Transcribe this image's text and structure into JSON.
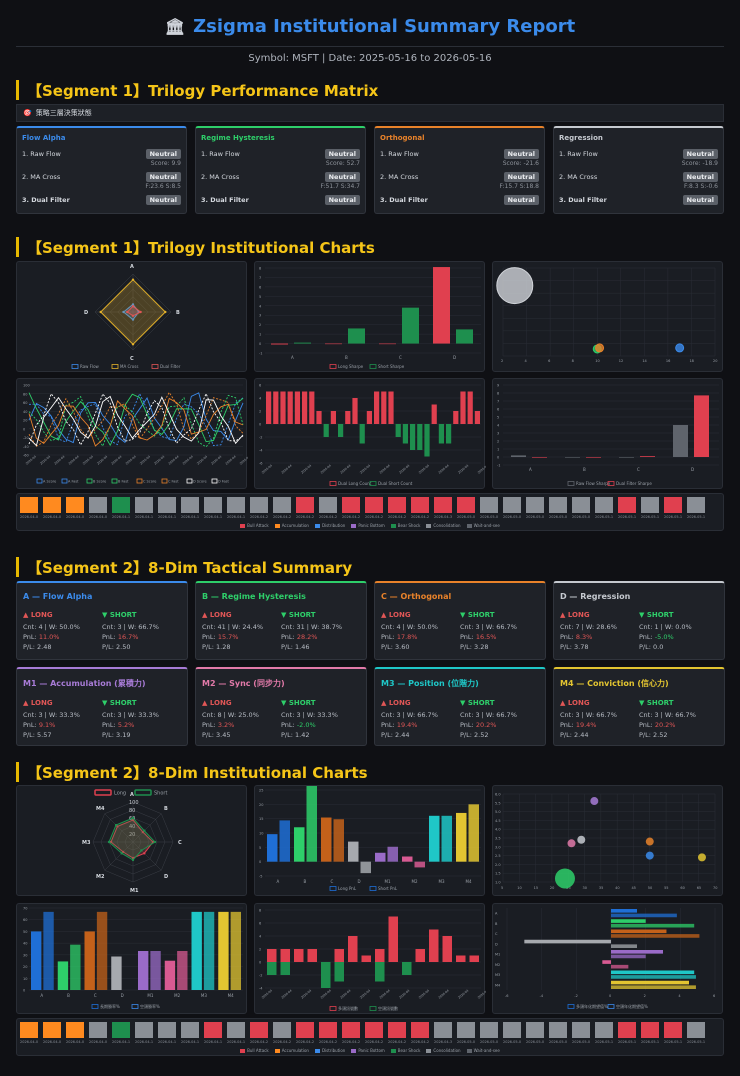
{
  "header": {
    "title": "Zsigma Institutional Summary Report",
    "bank_icon": "bank-icon",
    "subtitle": "Symbol: MSFT | Date: 2025-05-16 to 2026-05-16"
  },
  "sections": {
    "s1": "【Segment 1】Trilogy Performance Matrix",
    "s2": "【Segment 1】Trilogy Institutional Charts",
    "s3": "【Segment 2】8-Dim Tactical Summary",
    "s4": "【Segment 2】8-Dim Institutional Charts"
  },
  "matrix_strip": "策略三層決策狀態",
  "matrix": [
    {
      "name": "Flow Alpha",
      "color": "#3b8beb",
      "l1": "1. Raw Flow",
      "b1": "Neutral",
      "s1": "Score: 9.9",
      "l2": "2. MA Cross",
      "b2": "Neutral",
      "s2": "F:23.6 S:8.5",
      "l3": "3. Dual Filter",
      "b3": "Neutral"
    },
    {
      "name": "Regime Hysteresis",
      "color": "#2ecf6a",
      "l1": "1. Raw Flow",
      "b1": "Neutral",
      "s1": "Score: 52.7",
      "l2": "2. MA Cross",
      "b2": "Neutral",
      "s2": "F:51.7 S:34.7",
      "l3": "3. Dual Filter",
      "b3": "Neutral"
    },
    {
      "name": "Orthogonal",
      "color": "#e8822a",
      "l1": "1. Raw Flow",
      "b1": "Neutral",
      "s1": "Score: -21.6",
      "l2": "2. MA Cross",
      "b2": "Neutral",
      "s2": "F:15.7 S:18.8",
      "l3": "3. Dual Filter",
      "b3": "Neutral"
    },
    {
      "name": "Regression",
      "color": "#c5c9cf",
      "l1": "1. Raw Flow",
      "b1": "Neutral",
      "s1": "Score: -18.9",
      "l2": "2. MA Cross",
      "b2": "Neutral",
      "s2": "F:8.3 S:-0.6",
      "l3": "3. Dual Filter",
      "b3": "Neutral"
    }
  ],
  "dims": [
    {
      "title": "A — Flow Alpha",
      "color": "#3b8beb",
      "long": "▲ LONG",
      "short": "▼ SHORT",
      "lc": "Cnt: 4 | W: 50.0%",
      "lp": "11.0%",
      "lf": "P/L: 2.48",
      "sc": "Cnt: 3 | W: 66.7%",
      "sp": "16.7%",
      "sf": "P/L: 2.50"
    },
    {
      "title": "B — Regime Hysteresis",
      "color": "#2ecf6a",
      "long": "▲ LONG",
      "short": "▼ SHORT",
      "lc": "Cnt: 41 | W: 24.4%",
      "lp": "15.7%",
      "lf": "P/L: 1.28",
      "sc": "Cnt: 31 | W: 38.7%",
      "sp": "28.2%",
      "sf": "P/L: 1.46"
    },
    {
      "title": "C — Orthogonal",
      "color": "#e8822a",
      "long": "▲ LONG",
      "short": "▼ SHORT",
      "lc": "Cnt: 4 | W: 50.0%",
      "lp": "17.8%",
      "lf": "P/L: 3.60",
      "sc": "Cnt: 3 | W: 66.7%",
      "sp": "16.5%",
      "sf": "P/L: 3.28"
    },
    {
      "title": "D — Regression",
      "color": "#c5c9cf",
      "long": "▲ LONG",
      "short": "▼ SHORT",
      "lc": "Cnt: 7 | W: 28.6%",
      "lp": "8.3%",
      "lf": "P/L: 3.78",
      "sc": "Cnt: 1 | W: 0.0%",
      "sp": "-5.0%",
      "sf": "P/L: 0.0"
    },
    {
      "title": "M1 — Accumulation (累積力)",
      "color": "#a77bd6",
      "long": "▲ LONG",
      "short": "▼ SHORT",
      "lc": "Cnt: 3 | W: 33.3%",
      "lp": "9.1%",
      "lf": "P/L: 5.57",
      "sc": "Cnt: 3 | W: 33.3%",
      "sp": "5.2%",
      "sf": "P/L: 3.19"
    },
    {
      "title": "M2 — Sync (同步力)",
      "color": "#e27aa9",
      "long": "▲ LONG",
      "short": "▼ SHORT",
      "lc": "Cnt: 8 | W: 25.0%",
      "lp": "3.2%",
      "lf": "P/L: 3.45",
      "sc": "Cnt: 3 | W: 33.3%",
      "sp": "-2.0%",
      "sf": "P/L: 1.42"
    },
    {
      "title": "M3 — Position (位階力)",
      "color": "#1fc7c7",
      "long": "▲ LONG",
      "short": "▼ SHORT",
      "lc": "Cnt: 3 | W: 66.7%",
      "lp": "19.4%",
      "lf": "P/L: 2.44",
      "sc": "Cnt: 3 | W: 66.7%",
      "sp": "20.2%",
      "sf": "P/L: 2.52"
    },
    {
      "title": "M4 — Conviction (信心力)",
      "color": "#e3c531",
      "long": "▲ LONG",
      "short": "▼ SHORT",
      "lc": "Cnt: 3 | W: 66.7%",
      "lp": "19.4%",
      "lf": "P/L: 2.44",
      "sc": "Cnt: 3 | W: 66.7%",
      "sp": "20.2%",
      "sf": "P/L: 2.52"
    }
  ],
  "chart_data": [
    {
      "id": "radar1",
      "type": "radar",
      "axes": [
        "A",
        "B",
        "C",
        "D"
      ],
      "r_ticks": [
        "",
        "",
        "",
        ""
      ],
      "series": [
        {
          "name": "Raw Flow",
          "color": "#3b8beb",
          "values": [
            0.2,
            0.15,
            0.2,
            0.25
          ]
        },
        {
          "name": "MA Cross",
          "color": "#e3b12a",
          "values": [
            0.85,
            0.85,
            0.85,
            0.85
          ]
        },
        {
          "name": "Dual Filter",
          "color": "#e05656",
          "values": [
            0.15,
            0.2,
            0.1,
            0.15
          ]
        }
      ]
    },
    {
      "id": "sharpe1",
      "type": "bar",
      "categories": [
        "A",
        "B",
        "C",
        "D"
      ],
      "ylim": [
        -1,
        8
      ],
      "yticks": [
        "8",
        "7",
        "6",
        "5",
        "4",
        "3",
        "2",
        "1",
        "0",
        "-1"
      ],
      "series": [
        {
          "name": "Long Sharpe",
          "color": "#e0404f",
          "values": [
            -0.1,
            0,
            0,
            8.1
          ]
        },
        {
          "name": "Short Sharpe",
          "color": "#1e8f4e",
          "values": [
            0.1,
            1.6,
            3.8,
            1.5
          ]
        }
      ]
    },
    {
      "id": "scatter1",
      "type": "scatter",
      "xticks": [
        "2",
        "4",
        "6",
        "8",
        "10",
        "12",
        "14",
        "16",
        "18",
        "20"
      ],
      "points": [
        {
          "x": 3,
          "y": 20,
          "r": 18,
          "color": "#d0d3d8"
        },
        {
          "x": 10,
          "y": 2,
          "r": 4,
          "color": "#2ecf6a"
        },
        {
          "x": 10.2,
          "y": 2.3,
          "r": 4,
          "color": "#e8822a"
        },
        {
          "x": 17,
          "y": 2.3,
          "r": 4,
          "color": "#3b8beb"
        }
      ]
    },
    {
      "id": "lines1",
      "type": "line",
      "ylim": [
        -60,
        100
      ],
      "yticks": [
        "100",
        "80",
        "60",
        "40",
        "20",
        "0",
        "-20",
        "-40",
        "-60"
      ],
      "series": [
        {
          "name": "A Score",
          "color": "#3b8beb"
        },
        {
          "name": "A Fast",
          "color": "#3b8beb"
        },
        {
          "name": "B Score",
          "color": "#2ecf6a"
        },
        {
          "name": "B Fast",
          "color": "#2ecf6a"
        },
        {
          "name": "C Score",
          "color": "#e8822a"
        },
        {
          "name": "C Fast",
          "color": "#e8822a"
        },
        {
          "name": "D Score",
          "color": "#ffffff"
        },
        {
          "name": "D Fast",
          "color": "#ffffff"
        }
      ]
    },
    {
      "id": "dualcount1",
      "type": "bar",
      "ylim": [
        -6,
        6
      ],
      "yticks": [
        "6",
        "4",
        "2",
        "0",
        "-2",
        "-4",
        "-6"
      ],
      "values": [
        5,
        5,
        5,
        5,
        5,
        5,
        5,
        2,
        -2,
        2,
        -2,
        2,
        4,
        -3,
        2,
        5,
        5,
        5,
        -2,
        -3,
        -4,
        -4,
        -5,
        3,
        -3,
        -3,
        2,
        5,
        5,
        2
      ],
      "series": [
        {
          "name": "Dual Long Count",
          "color": "#e0404f"
        },
        {
          "name": "Dual Short Count",
          "color": "#1e8f4e"
        }
      ]
    },
    {
      "id": "dualsharpe1",
      "type": "bar",
      "categories": [
        "A",
        "B",
        "C",
        "D"
      ],
      "yticks": [
        "9",
        "8",
        "7",
        "6",
        "5",
        "4",
        "3",
        "2",
        "1",
        "0",
        "-1"
      ],
      "series": [
        {
          "name": "Raw Flow Sharpe",
          "color": "#5f646c",
          "values": [
            0.2,
            0,
            0,
            4
          ]
        },
        {
          "name": "Dual Filter Sharpe",
          "color": "#e0404f",
          "values": [
            0,
            0,
            0.1,
            7.7
          ]
        }
      ]
    },
    {
      "id": "radar2",
      "type": "radar",
      "axes": [
        "A",
        "B",
        "C",
        "D",
        "M1",
        "M2",
        "M3",
        "M4"
      ],
      "r_ticks": [
        "100",
        "80",
        "60",
        "40",
        "20"
      ],
      "series": [
        {
          "name": "Long",
          "color": "#e0404f",
          "values": [
            0.55,
            0.35,
            0.5,
            0.4,
            0.4,
            0.35,
            0.55,
            0.55
          ]
        },
        {
          "name": "Short",
          "color": "#1e8f4e",
          "values": [
            0.6,
            0.4,
            0.55,
            0.3,
            0.45,
            0.4,
            0.6,
            0.6
          ]
        }
      ]
    },
    {
      "id": "pnl2",
      "type": "bar",
      "categories": [
        "A",
        "B",
        "C",
        "D",
        "M1",
        "M2",
        "M3",
        "M4"
      ],
      "yticks": [
        "25",
        "20",
        "15",
        "10",
        "5",
        "0",
        "-5"
      ],
      "series": [
        {
          "name": "Long PnL",
          "color": "#1f6fd6"
        },
        {
          "name": "Short PnL",
          "color": "#1f6fd6"
        }
      ],
      "values": [
        [
          9.6,
          14.4
        ],
        [
          12,
          27
        ],
        [
          15.4,
          14.8
        ],
        [
          7,
          -4
        ],
        [
          3.1,
          5.2
        ],
        [
          1.8,
          -2
        ],
        [
          16,
          16
        ],
        [
          17,
          20
        ]
      ],
      "colors": [
        "#1f6fd6",
        "#2ecf6a",
        "#c4611a",
        "#a6a9ae",
        "#9a6bc8",
        "#d85a92",
        "#1fc7c7",
        "#e3c531"
      ]
    },
    {
      "id": "scatter2",
      "type": "scatter",
      "yticks": [
        "6.0",
        "5.5",
        "5.0",
        "4.5",
        "4.0",
        "3.5",
        "3.0",
        "2.5",
        "2.0",
        "1.5",
        "1.0"
      ],
      "xticks": [
        "5",
        "10",
        "15",
        "20",
        "25",
        "30",
        "35",
        "40",
        "45",
        "50",
        "55",
        "60",
        "65",
        "70"
      ],
      "points": [
        {
          "x": 24,
          "y": 1.2,
          "r": 10,
          "color": "#2ecf6a"
        },
        {
          "x": 26,
          "y": 3.2,
          "r": 4,
          "color": "#e27aa9"
        },
        {
          "x": 29,
          "y": 3.4,
          "r": 4,
          "color": "#c5c9cf"
        },
        {
          "x": 33,
          "y": 5.6,
          "r": 4,
          "color": "#a77bd6"
        },
        {
          "x": 50,
          "y": 3.3,
          "r": 4,
          "color": "#e8822a"
        },
        {
          "x": 50,
          "y": 2.5,
          "r": 4,
          "color": "#3b8beb"
        },
        {
          "x": 66,
          "y": 2.4,
          "r": 4,
          "color": "#e3c531"
        }
      ]
    },
    {
      "id": "winrate2",
      "type": "bar",
      "categories": [
        "A",
        "B",
        "C",
        "D",
        "M1",
        "M2",
        "M3",
        "M4"
      ],
      "yticks": [
        "70",
        "60",
        "50",
        "40",
        "30",
        "20",
        "10",
        "0"
      ],
      "values": [
        [
          50,
          66.7
        ],
        [
          24.4,
          38.7
        ],
        [
          50,
          66.7
        ],
        [
          28.6,
          0
        ],
        [
          33.3,
          33.3
        ],
        [
          25,
          33.3
        ],
        [
          66.7,
          66.7
        ],
        [
          66.7,
          66.7
        ]
      ],
      "colors": [
        "#1f6fd6",
        "#2ecf6a",
        "#c4611a",
        "#a6a9ae",
        "#9a6bc8",
        "#d85a92",
        "#1fc7c7",
        "#e3c531"
      ],
      "series": [
        {
          "name": "長期勝率%",
          "color": "#1f6fd6"
        },
        {
          "name": "空頭勝率%",
          "color": "#3b8beb"
        }
      ]
    },
    {
      "id": "daily2",
      "type": "bar",
      "yticks": [
        "8",
        "6",
        "4",
        "2",
        "0",
        "-2",
        "-4"
      ],
      "values": [
        [
          2,
          -2
        ],
        [
          2,
          -2
        ],
        [
          2,
          0
        ],
        [
          2,
          0
        ],
        [
          -4,
          0
        ],
        [
          2,
          -3
        ],
        [
          4,
          0
        ],
        [
          1,
          0
        ],
        [
          2,
          -3
        ],
        [
          7,
          0
        ],
        [
          -2,
          0
        ],
        [
          2,
          0
        ],
        [
          5,
          0
        ],
        [
          4,
          0
        ],
        [
          1,
          0
        ],
        [
          1,
          0
        ]
      ],
      "series": [
        {
          "name": "多頭訊號數",
          "color": "#e0404f"
        },
        {
          "name": "空頭訊號數",
          "color": "#1e8f4e"
        }
      ]
    },
    {
      "id": "hbar2",
      "type": "bar",
      "categories": [
        "A",
        "B",
        "C",
        "D",
        "M1",
        "M2",
        "M3",
        "M4"
      ],
      "xticks": [
        "-6",
        "-4",
        "-2",
        "0",
        "2",
        "4",
        "6"
      ],
      "series": [
        {
          "name": "多頭年化期望值%",
          "color": "#1f6fd6"
        },
        {
          "name": "空頭年化期望值%",
          "color": "#3b8beb"
        }
      ],
      "values": [
        [
          1.5,
          3.8
        ],
        [
          2,
          4.8
        ],
        [
          3.2,
          5.1
        ],
        [
          -5,
          1.5
        ],
        [
          3,
          2
        ],
        [
          -0.5,
          1
        ],
        [
          4.8,
          4.9
        ],
        [
          4.5,
          4.9
        ]
      ],
      "colors": [
        "#1f6fd6",
        "#2ecf6a",
        "#c4611a",
        "#a6a9ae",
        "#9a6bc8",
        "#d85a92",
        "#1fc7c7",
        "#e3c531"
      ]
    }
  ],
  "calendar": {
    "dates": [
      "2026-04-06",
      "2026-04-07",
      "2026-04-08",
      "2026-04-09",
      "2026-04-10",
      "2026-04-13",
      "2026-04-14",
      "2026-04-15",
      "2026-04-16",
      "2026-04-17",
      "2026-04-20",
      "2026-04-21",
      "2026-04-22",
      "2026-04-23",
      "2026-04-24",
      "2026-04-27",
      "2026-04-28",
      "2026-04-29",
      "2026-04-30",
      "2026-05-01",
      "2026-05-04",
      "2026-05-05",
      "2026-05-06",
      "2026-05-07",
      "2026-05-08",
      "2026-05-11",
      "2026-05-12",
      "2026-05-13",
      "2026-05-14",
      "2026-05-15"
    ],
    "colors1": [
      "#ff8a1f",
      "#ff8a1f",
      "#ff8a1f",
      "#8a8f96",
      "#1e8f4e",
      "#8a8f96",
      "#8a8f96",
      "#8a8f96",
      "#8a8f96",
      "#8a8f96",
      "#8a8f96",
      "#8a8f96",
      "#e0404f",
      "#8a8f96",
      "#e0404f",
      "#e0404f",
      "#e0404f",
      "#e0404f",
      "#e0404f",
      "#e0404f",
      "#8a8f96",
      "#8a8f96",
      "#8a8f96",
      "#8a8f96",
      "#8a8f96",
      "#8a8f96",
      "#e0404f",
      "#8a8f96",
      "#e0404f",
      "#8a8f96"
    ],
    "colors2": [
      "#ff8a1f",
      "#ff8a1f",
      "#ff8a1f",
      "#8a8f96",
      "#1e8f4e",
      "#8a8f96",
      "#8a8f96",
      "#8a8f96",
      "#e0404f",
      "#8a8f96",
      "#e0404f",
      "#8a8f96",
      "#e0404f",
      "#e0404f",
      "#e0404f",
      "#e0404f",
      "#e0404f",
      "#e0404f",
      "#8a8f96",
      "#8a8f96",
      "#8a8f96",
      "#8a8f96",
      "#8a8f96",
      "#8a8f96",
      "#8a8f96",
      "#8a8f96",
      "#e0404f",
      "#e0404f",
      "#e0404f",
      "#8a8f96"
    ],
    "legend": [
      {
        "name": "Bull Attack",
        "color": "#e0404f"
      },
      {
        "name": "Accumulation",
        "color": "#ff8a1f"
      },
      {
        "name": "Distribution",
        "color": "#3b8beb"
      },
      {
        "name": "Panic Bottom",
        "color": "#9a6bc8"
      },
      {
        "name": "Bear Shock",
        "color": "#1e8f4e"
      },
      {
        "name": "Consolidation",
        "color": "#8a8f96"
      },
      {
        "name": "Wait-and-see",
        "color": "#5f646c"
      }
    ]
  }
}
